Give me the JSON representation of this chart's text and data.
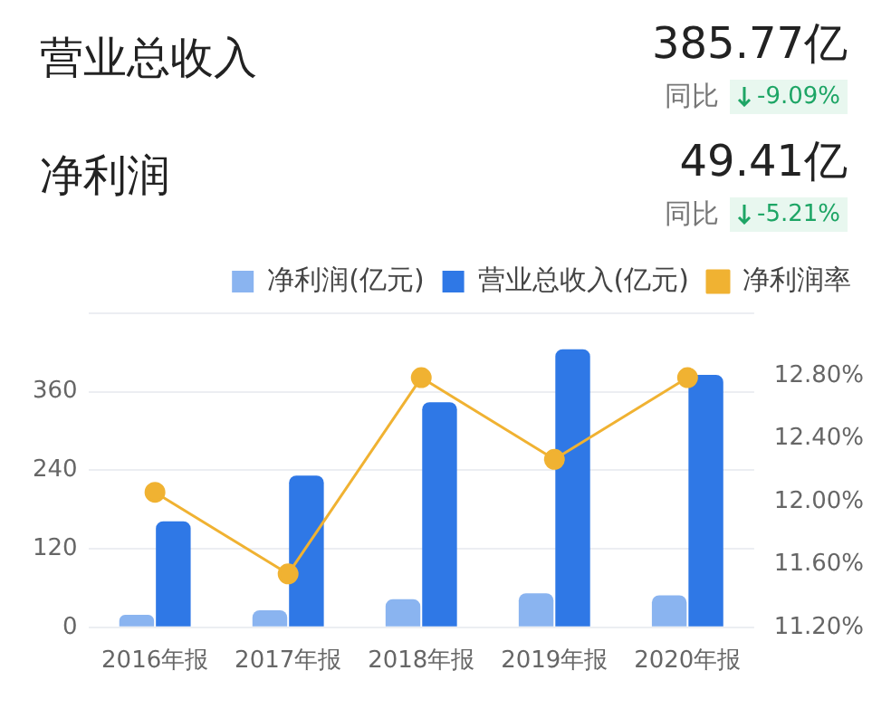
{
  "chart_data": {
    "type": "bar",
    "annotations": [
      "营业总收入",
      "385.77亿",
      "同比",
      "-9.09%",
      "净利润",
      "49.41亿",
      "同比",
      "-5.21%"
    ],
    "categories": [
      "2016年报",
      "2017年报",
      "2018年报",
      "2019年报",
      "2020年报"
    ],
    "series": [
      {
        "name": "净利润(亿元)",
        "color": "#8ab4f0",
        "values": [
          19,
          26,
          43,
          52,
          49
        ]
      },
      {
        "name": "营业总收入(亿元)",
        "color": "#2f78e6",
        "values": [
          162,
          232,
          344,
          425,
          386
        ]
      },
      {
        "name": "净利润率",
        "type": "line",
        "axis": "y2",
        "color": "#f0b232",
        "values": [
          12.06,
          11.54,
          12.79,
          12.27,
          12.79
        ]
      }
    ],
    "ylim": [
      0,
      480
    ],
    "yticks": [
      0,
      120,
      240,
      360,
      {
        "value": 480,
        "label": null
      }
    ],
    "y2lim": [
      11.2,
      13.2
    ],
    "y2ticks": [
      {
        "value": 11.2,
        "label": "11.20%"
      },
      {
        "value": 11.6,
        "label": "11.60%"
      },
      {
        "value": 12.0,
        "label": "12.00%"
      },
      {
        "value": 12.4,
        "label": "12.40%"
      },
      {
        "value": 12.8,
        "label": "12.80%"
      }
    ],
    "grid": "y",
    "legend": "top right",
    "marker": "circle"
  }
}
